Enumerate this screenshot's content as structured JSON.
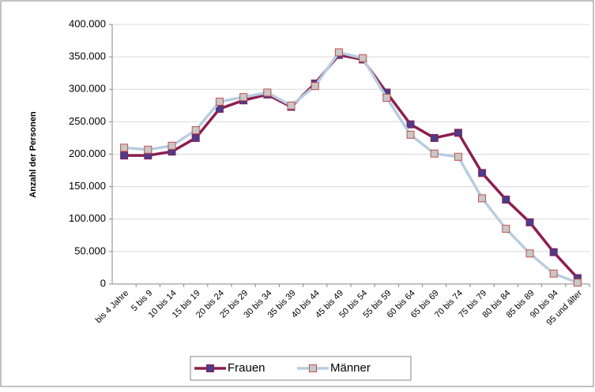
{
  "chart_data": {
    "type": "line",
    "y_label": "Anzahl der Personen",
    "categories": [
      "bis 4 Jahre",
      "5 bis 9",
      "10 bis 14",
      "15 bis 19",
      "20 bis 24",
      "25 bis 29",
      "30 bis 34",
      "35 bis 39",
      "40 bis 44",
      "45 bis 49",
      "50 bis 54",
      "55 bis 59",
      "60 bis 64",
      "65 bis 69",
      "70 bis 74",
      "75 bis 79",
      "80 bis 84",
      "85 bis 89",
      "90 bis 94",
      "95 und älter"
    ],
    "series": [
      {
        "name": "Frauen",
        "color": "#8c1f4f",
        "marker_fill": "#4a3d8c",
        "marker_stroke": "#8c1f4f",
        "values": [
          198000,
          198000,
          204000,
          225000,
          270000,
          283000,
          292000,
          273000,
          309000,
          353000,
          346000,
          295000,
          246000,
          225000,
          233000,
          171000,
          130000,
          95000,
          49000,
          9000
        ]
      },
      {
        "name": "Männer",
        "color": "#b9cde0",
        "marker_fill": "#c8c8c8",
        "marker_stroke": "#c0504d",
        "values": [
          210000,
          207000,
          213000,
          237000,
          281000,
          288000,
          295000,
          275000,
          305000,
          357000,
          348000,
          287000,
          230000,
          201000,
          196000,
          132000,
          85000,
          47000,
          16000,
          2000
        ]
      }
    ],
    "ylim": [
      0,
      400000
    ],
    "yticks": [
      0,
      {
        "value": 50000,
        "label": "50.000"
      },
      {
        "value": 100000,
        "label": "100.000"
      },
      {
        "value": 150000,
        "label": "150.000"
      },
      {
        "value": 200000,
        "label": "200.000"
      },
      {
        "value": 250000,
        "label": "250.000"
      },
      {
        "value": 300000,
        "label": "300.000"
      },
      {
        "value": 350000,
        "label": "350.000"
      },
      {
        "value": 400000,
        "label": "400.000"
      }
    ],
    "grid": true,
    "legend": "bottom"
  }
}
